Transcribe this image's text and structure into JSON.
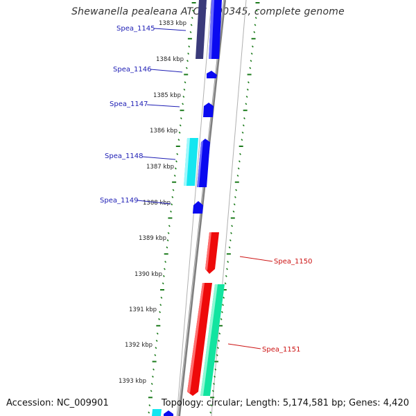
{
  "title": "Shewanella pealeana ATCC 700345, complete genome",
  "footer": {
    "accession": "Accession: NC_009901",
    "summary": "Topology: circular; Length: 5,174,581 bp; Genes: 4,420"
  },
  "colors": {
    "backbone": "#8a8a8a",
    "tick": "#1a7a1a",
    "forward_label": "#1c1cb4",
    "reverse_label": "#cc1111",
    "gene_blue": "#0a0af0",
    "gene_navy": "#3a3a7a",
    "gene_cyan": "#14e6f0",
    "gene_red": "#ee0a0a",
    "gene_green": "#12e4a0"
  },
  "kbp_ticks": [
    "1383 kbp",
    "1384 kbp",
    "1385 kbp",
    "1386 kbp",
    "1387 kbp",
    "1388 kbp",
    "1389 kbp",
    "1390 kbp",
    "1391 kbp",
    "1392 kbp",
    "1393 kbp"
  ],
  "gene_labels": [
    {
      "name": "Spea_1145",
      "strand": "forward"
    },
    {
      "name": "Spea_1146",
      "strand": "forward"
    },
    {
      "name": "Spea_1147",
      "strand": "forward"
    },
    {
      "name": "Spea_1148",
      "strand": "forward"
    },
    {
      "name": "Spea_1149",
      "strand": "forward"
    },
    {
      "name": "Spea_1150",
      "strand": "reverse"
    },
    {
      "name": "Spea_1151",
      "strand": "reverse"
    }
  ]
}
